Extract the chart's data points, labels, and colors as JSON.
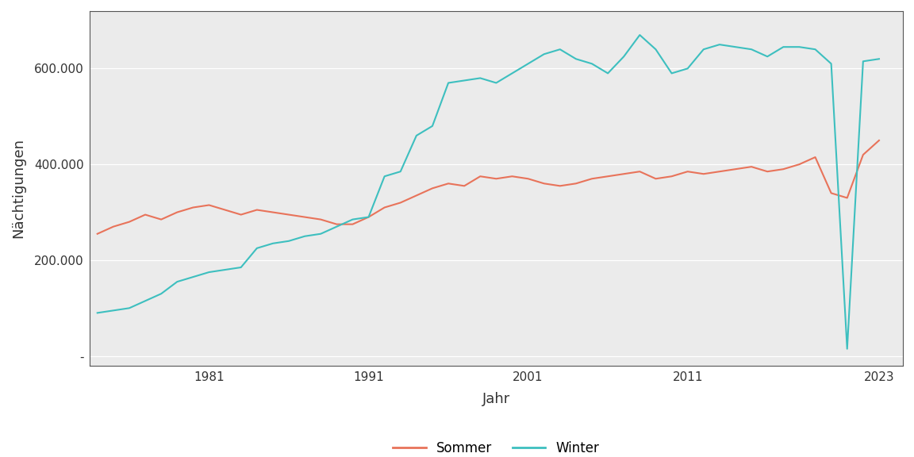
{
  "title": "",
  "xlabel": "Jahr",
  "ylabel": "Nächtigungen",
  "background_color": "#ffffff",
  "plot_background_color": "#ebebeb",
  "grid_color": "#ffffff",
  "sommer_color": "#E8735A",
  "winter_color": "#3DBFBF",
  "legend_labels": [
    "Sommer",
    "Winter"
  ],
  "yticks": [
    0,
    200000,
    400000,
    600000
  ],
  "ytick_labels": [
    "-",
    "200.000",
    "400.000",
    "600.000"
  ],
  "xticks": [
    1981,
    1991,
    2001,
    2011,
    2023
  ],
  "years": [
    1974,
    1975,
    1976,
    1977,
    1978,
    1979,
    1980,
    1981,
    1982,
    1983,
    1984,
    1985,
    1986,
    1987,
    1988,
    1989,
    1990,
    1991,
    1992,
    1993,
    1994,
    1995,
    1996,
    1997,
    1998,
    1999,
    2000,
    2001,
    2002,
    2003,
    2004,
    2005,
    2006,
    2007,
    2008,
    2009,
    2010,
    2011,
    2012,
    2013,
    2014,
    2015,
    2016,
    2017,
    2018,
    2019,
    2020,
    2021,
    2022,
    2023
  ],
  "sommer": [
    255000,
    270000,
    280000,
    295000,
    285000,
    300000,
    310000,
    315000,
    305000,
    295000,
    305000,
    300000,
    295000,
    290000,
    285000,
    275000,
    275000,
    290000,
    310000,
    320000,
    335000,
    350000,
    360000,
    355000,
    375000,
    370000,
    375000,
    370000,
    360000,
    355000,
    360000,
    370000,
    375000,
    380000,
    385000,
    370000,
    375000,
    385000,
    380000,
    385000,
    390000,
    395000,
    385000,
    390000,
    400000,
    415000,
    340000,
    330000,
    420000,
    450000
  ],
  "winter": [
    90000,
    95000,
    100000,
    115000,
    130000,
    155000,
    165000,
    175000,
    180000,
    185000,
    225000,
    235000,
    240000,
    250000,
    255000,
    270000,
    285000,
    290000,
    375000,
    385000,
    460000,
    480000,
    570000,
    575000,
    580000,
    570000,
    590000,
    610000,
    630000,
    640000,
    620000,
    610000,
    590000,
    625000,
    670000,
    640000,
    590000,
    600000,
    640000,
    650000,
    645000,
    640000,
    625000,
    645000,
    645000,
    640000,
    610000,
    15000,
    615000,
    620000
  ],
  "xlim": [
    1973.5,
    2024.5
  ],
  "ylim": [
    -20000,
    720000
  ]
}
